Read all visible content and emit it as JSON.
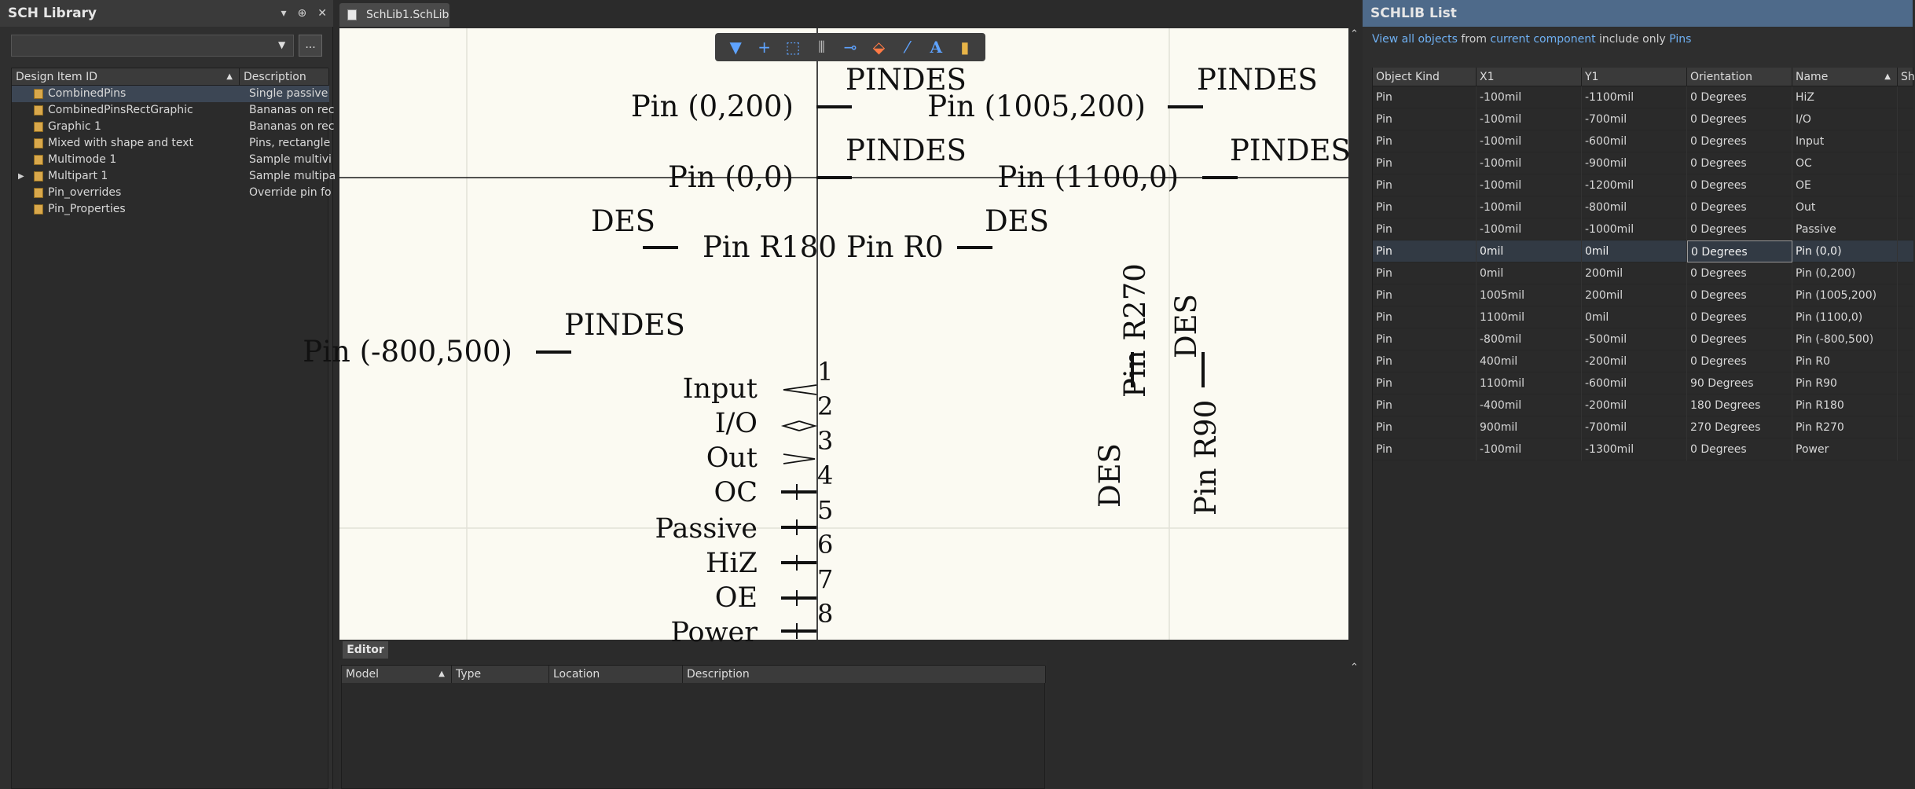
{
  "lib_panel": {
    "title": "SCH Library",
    "header_icons": [
      "▾",
      "⊕",
      "✕"
    ],
    "filter_value": "",
    "browse_label": "...",
    "columns": [
      "Design Item ID",
      "Description"
    ],
    "items": [
      {
        "id": "CombinedPins",
        "description": "Single passive",
        "selected": true
      },
      {
        "id": "CombinedPinsRectGraphic",
        "description": "Bananas on rec"
      },
      {
        "id": "Graphic 1",
        "description": "Bananas on rec"
      },
      {
        "id": "Mixed with shape and text",
        "description": "Pins, rectangle"
      },
      {
        "id": "Multimode 1",
        "description": "Sample multivi"
      },
      {
        "id": "Multipart 1",
        "description": "Sample multipa",
        "expandable": true
      },
      {
        "id": "Pin_overrides",
        "description": "Override pin fo"
      },
      {
        "id": "Pin_Properties",
        "description": ""
      }
    ]
  },
  "doc_tab": {
    "label": "SchLib1.SchLib"
  },
  "toolbar": {
    "tools": [
      {
        "icon": "filter-icon",
        "glyph": "▼"
      },
      {
        "icon": "add-icon",
        "glyph": "+"
      },
      {
        "icon": "select-rect-icon",
        "glyph": "⬚"
      },
      {
        "icon": "align-icon",
        "glyph": "⫴"
      },
      {
        "icon": "pin-icon",
        "glyph": "⊸"
      },
      {
        "icon": "eraser-icon",
        "glyph": "⬙"
      },
      {
        "icon": "line-icon",
        "glyph": "⁄"
      },
      {
        "icon": "text-icon",
        "glyph": "A"
      },
      {
        "icon": "part-icon",
        "glyph": "▮"
      }
    ]
  },
  "canvas": {
    "labels": [
      "Pin (0,200)",
      "PINDES",
      "Pin (1005,200)",
      "PINDES",
      "Pin (0,0)",
      "PINDES",
      "Pin (1100,0)",
      "PINDES",
      "DES",
      "Pin R180",
      "Pin R0",
      "DES",
      "Pin (-800,500)",
      "PINDES",
      "Pin R270",
      "DES",
      "DES",
      "Pin R90"
    ],
    "pin_names": [
      "Input",
      "I/O",
      "Out",
      "OC",
      "Passive",
      "HiZ",
      "OE",
      "Power"
    ],
    "pin_numbers": [
      "1",
      "2",
      "3",
      "4",
      "5",
      "6",
      "7",
      "8"
    ]
  },
  "editor": {
    "tab_label": "Editor",
    "columns": [
      "Model",
      "Type",
      "Location",
      "Description"
    ]
  },
  "list_panel": {
    "title": "SCHLIB List",
    "filter": {
      "link1": "View all objects",
      "text1": " from ",
      "link2": "current component",
      "text2": " include only ",
      "link3": "Pins"
    },
    "columns": [
      "Object Kind",
      "X1",
      "Y1",
      "Orientation",
      "Name",
      "Sh"
    ],
    "rows": [
      [
        "Pin",
        "-100mil",
        "-1100mil",
        "0 Degrees",
        "HiZ"
      ],
      [
        "Pin",
        "-100mil",
        "-700mil",
        "0 Degrees",
        "I/O"
      ],
      [
        "Pin",
        "-100mil",
        "-600mil",
        "0 Degrees",
        "Input"
      ],
      [
        "Pin",
        "-100mil",
        "-900mil",
        "0 Degrees",
        "OC"
      ],
      [
        "Pin",
        "-100mil",
        "-1200mil",
        "0 Degrees",
        "OE"
      ],
      [
        "Pin",
        "-100mil",
        "-800mil",
        "0 Degrees",
        "Out"
      ],
      [
        "Pin",
        "-100mil",
        "-1000mil",
        "0 Degrees",
        "Passive"
      ],
      [
        "Pin",
        "0mil",
        "0mil",
        "0 Degrees",
        "Pin (0,0)"
      ],
      [
        "Pin",
        "0mil",
        "200mil",
        "0 Degrees",
        "Pin (0,200)"
      ],
      [
        "Pin",
        "1005mil",
        "200mil",
        "0 Degrees",
        "Pin (1005,200)"
      ],
      [
        "Pin",
        "1100mil",
        "0mil",
        "0 Degrees",
        "Pin (1100,0)"
      ],
      [
        "Pin",
        "-800mil",
        "-500mil",
        "0 Degrees",
        "Pin (-800,500)"
      ],
      [
        "Pin",
        "400mil",
        "-200mil",
        "0 Degrees",
        "Pin R0"
      ],
      [
        "Pin",
        "1100mil",
        "-600mil",
        "90 Degrees",
        "Pin R90"
      ],
      [
        "Pin",
        "-400mil",
        "-200mil",
        "180 Degrees",
        "Pin R180"
      ],
      [
        "Pin",
        "900mil",
        "-700mil",
        "270 Degrees",
        "Pin R270"
      ],
      [
        "Pin",
        "-100mil",
        "-1300mil",
        "0 Degrees",
        "Power"
      ]
    ],
    "selected_row": 7
  }
}
